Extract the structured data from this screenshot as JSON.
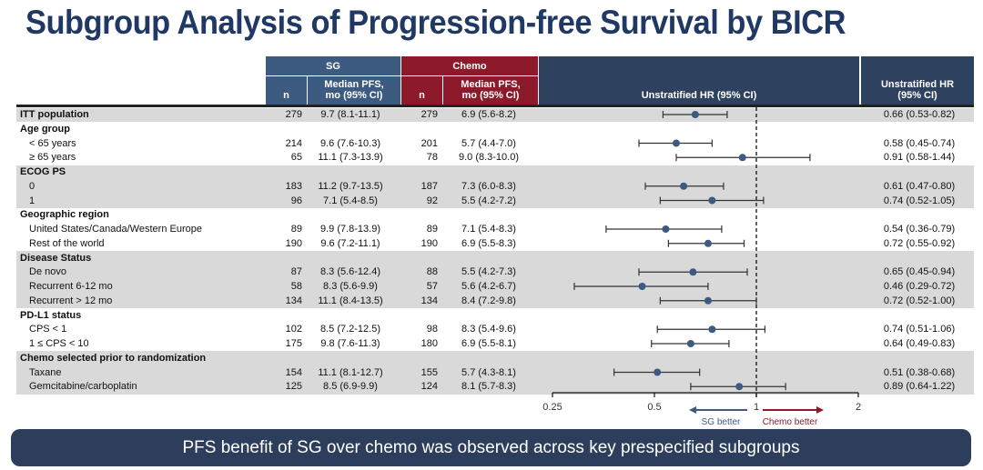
{
  "title": "Subgroup Analysis of Progression-free Survival by BICR",
  "header": {
    "sg": "SG",
    "chemo": "Chemo",
    "n": "n",
    "median_pfs": "Median PFS, mo (95% CI)",
    "hr_col": "Unstratified HR (95% CI)",
    "hr_right": "Unstratified HR (95% CI)"
  },
  "colors": {
    "sg": "#3d5a80",
    "chemo": "#8c1a2b",
    "header": "#2e4260",
    "point": "#3d5a80",
    "shade": "#d9d9d9"
  },
  "chart_data": {
    "type": "forest",
    "x_scale": "log",
    "xlim": [
      0.25,
      2
    ],
    "x_ticks": [
      "0.25",
      "0.5",
      "1",
      "2"
    ],
    "reference_line": 1,
    "left_label": "SG better",
    "right_label": "Chemo better",
    "rows": [
      {
        "label": "ITT population",
        "group": true,
        "n_sg": "279",
        "pfs_sg": "9.7 (8.1-11.1)",
        "n_chemo": "279",
        "pfs_chemo": "6.9 (5.6-8.2)",
        "hr": 0.66,
        "lo": 0.53,
        "hi": 0.82,
        "hr_text": "0.66 (0.53-0.82)"
      },
      {
        "label": "Age group",
        "group": true
      },
      {
        "label": "< 65 years",
        "n_sg": "214",
        "pfs_sg": "9.6 (7.6-10.3)",
        "n_chemo": "201",
        "pfs_chemo": "5.7 (4.4-7.0)",
        "hr": 0.58,
        "lo": 0.45,
        "hi": 0.74,
        "hr_text": "0.58 (0.45-0.74)"
      },
      {
        "label": "≥ 65 years",
        "n_sg": "65",
        "pfs_sg": "11.1 (7.3-13.9)",
        "n_chemo": "78",
        "pfs_chemo": "9.0 (8.3-10.0)",
        "hr": 0.91,
        "lo": 0.58,
        "hi": 1.44,
        "hr_text": "0.91 (0.58-1.44)"
      },
      {
        "label": "ECOG PS",
        "group": true
      },
      {
        "label": "0",
        "n_sg": "183",
        "pfs_sg": "11.2 (9.7-13.5)",
        "n_chemo": "187",
        "pfs_chemo": "7.3 (6.0-8.3)",
        "hr": 0.61,
        "lo": 0.47,
        "hi": 0.8,
        "hr_text": "0.61 (0.47-0.80)"
      },
      {
        "label": "1",
        "n_sg": "96",
        "pfs_sg": "7.1 (5.4-8.5)",
        "n_chemo": "92",
        "pfs_chemo": "5.5 (4.2-7.2)",
        "hr": 0.74,
        "lo": 0.52,
        "hi": 1.05,
        "hr_text": "0.74 (0.52-1.05)"
      },
      {
        "label": "Geographic region",
        "group": true
      },
      {
        "label": "United States/Canada/Western Europe",
        "n_sg": "89",
        "pfs_sg": "9.9 (7.8-13.9)",
        "n_chemo": "89",
        "pfs_chemo": "7.1 (5.4-8.3)",
        "hr": 0.54,
        "lo": 0.36,
        "hi": 0.79,
        "hr_text": "0.54 (0.36-0.79)"
      },
      {
        "label": "Rest of the world",
        "n_sg": "190",
        "pfs_sg": "9.6 (7.2-11.1)",
        "n_chemo": "190",
        "pfs_chemo": "6.9 (5.5-8.3)",
        "hr": 0.72,
        "lo": 0.55,
        "hi": 0.92,
        "hr_text": "0.72 (0.55-0.92)"
      },
      {
        "label": "Disease Status",
        "group": true
      },
      {
        "label": "De novo",
        "n_sg": "87",
        "pfs_sg": "8.3 (5.6-12.4)",
        "n_chemo": "88",
        "pfs_chemo": "5.5 (4.2-7.3)",
        "hr": 0.65,
        "lo": 0.45,
        "hi": 0.94,
        "hr_text": "0.65 (0.45-0.94)"
      },
      {
        "label": "Recurrent 6-12 mo",
        "n_sg": "58",
        "pfs_sg": "8.3 (5.6-9.9)",
        "n_chemo": "57",
        "pfs_chemo": "5.6 (4.2-6.7)",
        "hr": 0.46,
        "lo": 0.29,
        "hi": 0.72,
        "hr_text": "0.46 (0.29-0.72)"
      },
      {
        "label": "Recurrent > 12 mo",
        "n_sg": "134",
        "pfs_sg": "11.1 (8.4-13.5)",
        "n_chemo": "134",
        "pfs_chemo": "8.4 (7.2-9.8)",
        "hr": 0.72,
        "lo": 0.52,
        "hi": 1.0,
        "hr_text": "0.72 (0.52-1.00)"
      },
      {
        "label": "PD-L1 status",
        "group": true
      },
      {
        "label": "CPS < 1",
        "n_sg": "102",
        "pfs_sg": "8.5 (7.2-12.5)",
        "n_chemo": "98",
        "pfs_chemo": "8.3 (5.4-9.6)",
        "hr": 0.74,
        "lo": 0.51,
        "hi": 1.06,
        "hr_text": "0.74 (0.51-1.06)"
      },
      {
        "label": "1 ≤ CPS < 10",
        "n_sg": "175",
        "pfs_sg": "9.8 (7.6-11.3)",
        "n_chemo": "180",
        "pfs_chemo": "6.9 (5.5-8.1)",
        "hr": 0.64,
        "lo": 0.49,
        "hi": 0.83,
        "hr_text": "0.64 (0.49-0.83)"
      },
      {
        "label": "Chemo selected prior to randomization",
        "group": true
      },
      {
        "label": "Taxane",
        "n_sg": "154",
        "pfs_sg": "11.1 (8.1-12.7)",
        "n_chemo": "155",
        "pfs_chemo": "5.7 (4.3-8.1)",
        "hr": 0.51,
        "lo": 0.38,
        "hi": 0.68,
        "hr_text": "0.51 (0.38-0.68)"
      },
      {
        "label": "Gemcitabine/carboplatin",
        "n_sg": "125",
        "pfs_sg": "8.5 (6.9-9.9)",
        "n_chemo": "124",
        "pfs_chemo": "8.1 (5.7-8.3)",
        "hr": 0.89,
        "lo": 0.64,
        "hi": 1.22,
        "hr_text": "0.89 (0.64-1.22)"
      }
    ]
  },
  "banner": "PFS benefit of SG over chemo was observed across key prespecified subgroups"
}
